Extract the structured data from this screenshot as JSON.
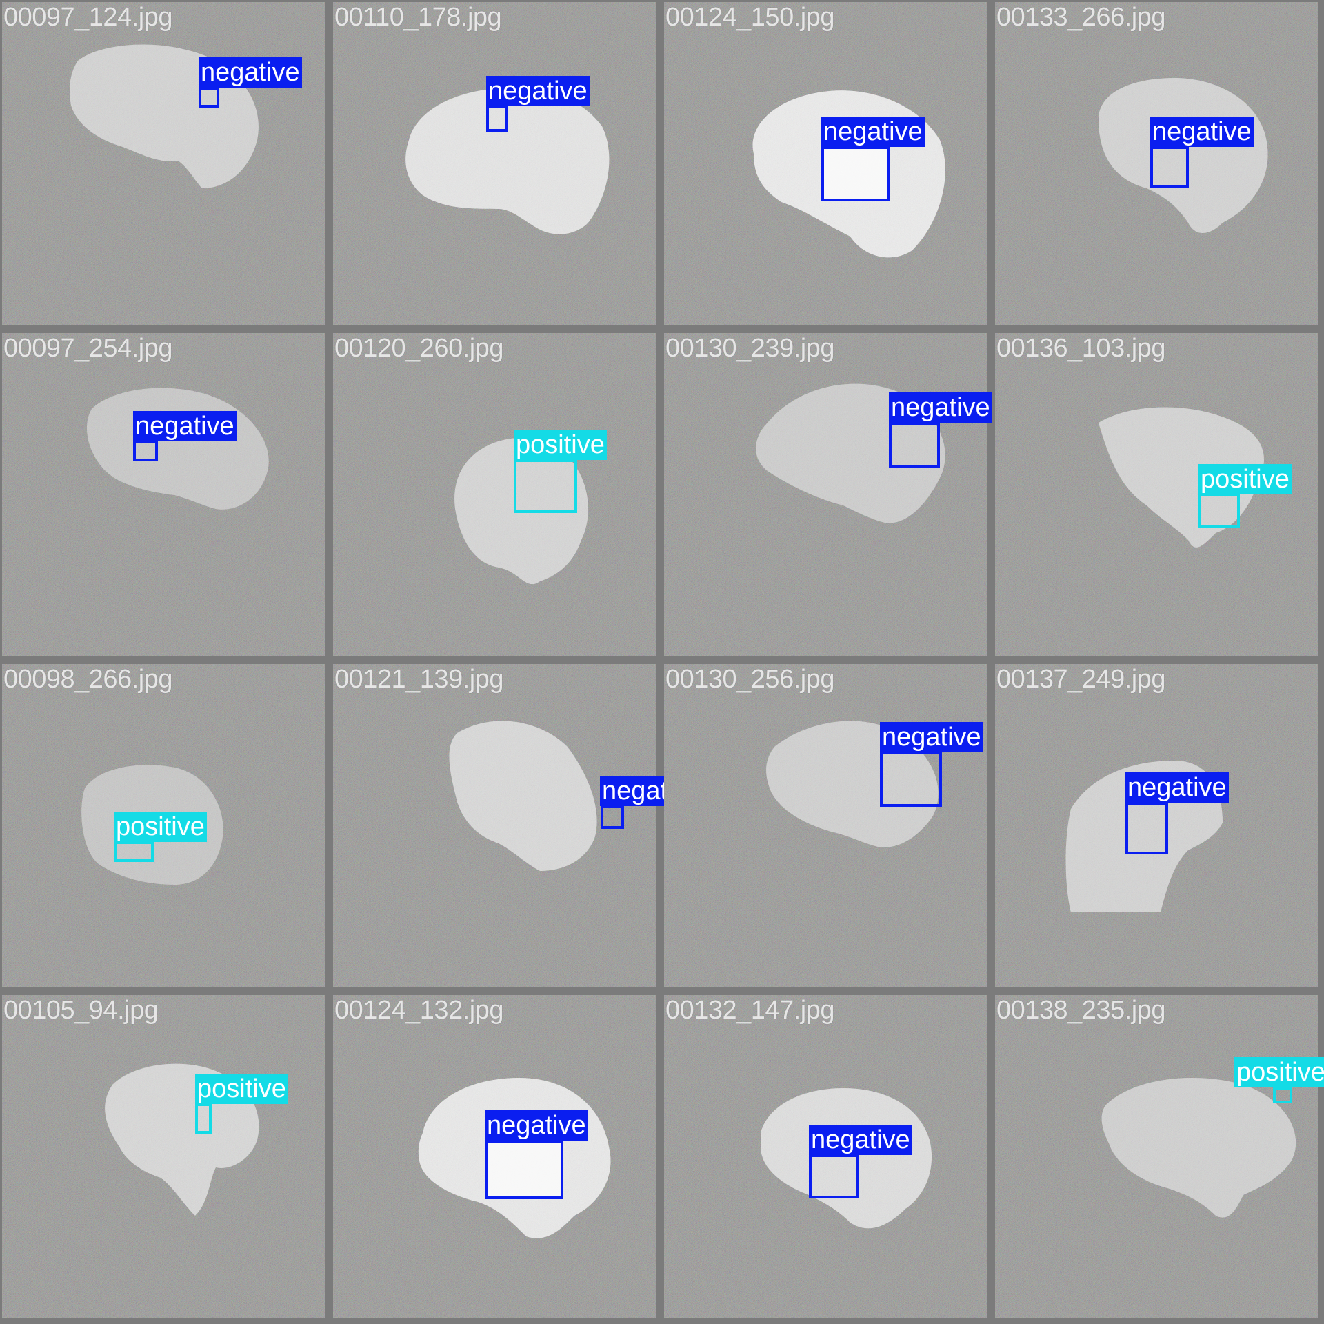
{
  "colors": {
    "negative": "#0a1ef0",
    "positive": "#14dbe6",
    "background": "#7b7b7b",
    "filename_text": "#e6e6e6"
  },
  "tiles": [
    {
      "filename": "00097_124.jpg",
      "detections": [
        {
          "label": "negative"
        }
      ]
    },
    {
      "filename": "00110_178.jpg",
      "detections": [
        {
          "label": "negative"
        }
      ]
    },
    {
      "filename": "00124_150.jpg",
      "detections": [
        {
          "label": "negative"
        }
      ]
    },
    {
      "filename": "00133_266.jpg",
      "detections": [
        {
          "label": "negative"
        }
      ]
    },
    {
      "filename": "00097_254.jpg",
      "detections": [
        {
          "label": "negative"
        }
      ]
    },
    {
      "filename": "00120_260.jpg",
      "detections": [
        {
          "label": "positive"
        }
      ]
    },
    {
      "filename": "00130_239.jpg",
      "detections": [
        {
          "label": "negative"
        }
      ]
    },
    {
      "filename": "00136_103.jpg",
      "detections": [
        {
          "label": "positive"
        }
      ]
    },
    {
      "filename": "00098_266.jpg",
      "detections": [
        {
          "label": "positive"
        }
      ]
    },
    {
      "filename": "00121_139.jpg",
      "detections": [
        {
          "label": "negative"
        }
      ]
    },
    {
      "filename": "00130_256.jpg",
      "detections": [
        {
          "label": "negative"
        }
      ]
    },
    {
      "filename": "00137_249.jpg",
      "detections": [
        {
          "label": "negative"
        }
      ]
    },
    {
      "filename": "00105_94.jpg",
      "detections": [
        {
          "label": "positive"
        }
      ]
    },
    {
      "filename": "00124_132.jpg",
      "detections": [
        {
          "label": "negative"
        }
      ]
    },
    {
      "filename": "00132_147.jpg",
      "detections": [
        {
          "label": "negative"
        }
      ]
    },
    {
      "filename": "00138_235.jpg",
      "detections": [
        {
          "label": "positive"
        }
      ]
    }
  ]
}
